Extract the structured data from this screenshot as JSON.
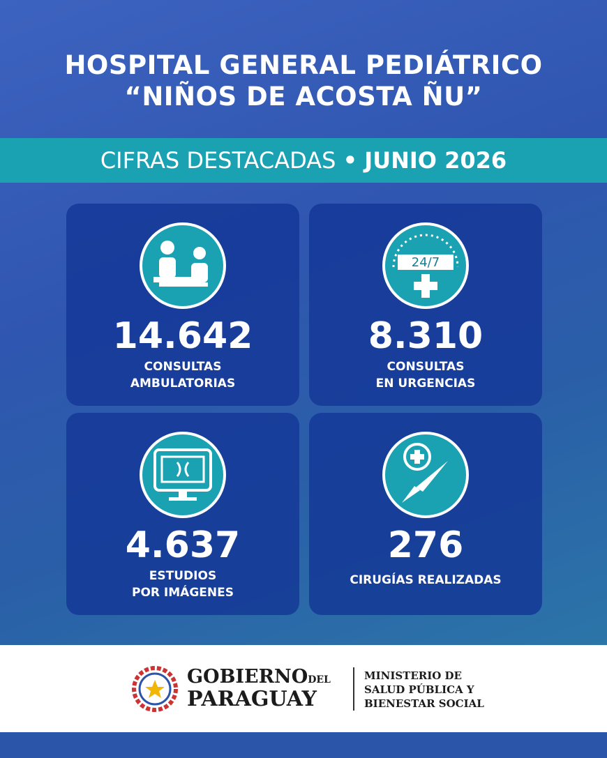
{
  "header": {
    "title_lines": [
      "HOSPITAL GENERAL PEDIÁTRICO",
      "“NIÑOS DE ACOSTA ÑU”"
    ]
  },
  "banner": {
    "label": "CIFRAS DESTACADAS",
    "separator": "•",
    "highlight": "JUNIO 2026"
  },
  "cards": [
    {
      "value": "14.642",
      "label_lines": [
        "CONSULTAS",
        "AMBULATORIAS"
      ],
      "icon_text": null
    },
    {
      "value": "8.310",
      "label_lines": [
        "CONSULTAS",
        "EN URGENCIAS"
      ],
      "icon_text": "24/7"
    },
    {
      "value": "4.637",
      "label_lines": [
        "ESTUDIOS",
        "POR IMÁGENES"
      ],
      "icon_text": null
    },
    {
      "value": "276",
      "label_lines": [
        "CIRUGÍAS REALIZADAS"
      ],
      "icon_text": null
    }
  ],
  "footer": {
    "gov_line1": "GOBIERNO",
    "gov_del": "DEL",
    "gov_line2": "PARAGUAY",
    "ministry_lines": [
      "MINISTERIO DE",
      "SALUD PÚBLICA Y",
      "BIENESTAR SOCIAL"
    ]
  }
}
